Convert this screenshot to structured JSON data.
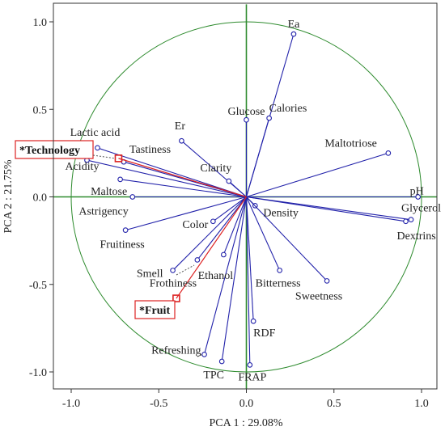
{
  "chart_data": {
    "type": "scatter",
    "title": "",
    "xlabel": "PCA 1 : 29.08%",
    "ylabel": "PCA 2 : 21.75%",
    "xlim": [
      -1.1,
      1.1
    ],
    "ylim": [
      -1.1,
      1.1
    ],
    "xticks": [
      -1.0,
      -0.5,
      0.0,
      0.5,
      1.0
    ],
    "yticks": [
      -1.0,
      -0.5,
      0.0,
      0.5,
      1.0
    ],
    "xtick_labels": [
      "-1.0",
      "-0.5",
      "0.0",
      "0.5",
      "1.0"
    ],
    "ytick_labels": [
      "-1.0",
      "-0.5",
      "0.0",
      "0.5",
      "1.0"
    ],
    "grid": false,
    "unit_circle": true,
    "colors": {
      "vector": "#2222aa",
      "circle": "#2e8b2e",
      "axis_line": "#2e8b2e",
      "supplementary": "#dd2222",
      "point_fill": "#ffffff"
    },
    "variables": [
      {
        "label": "Ea",
        "x": 0.27,
        "y": 0.93
      },
      {
        "label": "Calories",
        "x": 0.13,
        "y": 0.45
      },
      {
        "label": "Glucose",
        "x": 0.0,
        "y": 0.44
      },
      {
        "label": "Er",
        "x": -0.37,
        "y": 0.32
      },
      {
        "label": "Clarity",
        "x": -0.1,
        "y": 0.09
      },
      {
        "label": "Maltotriose",
        "x": 0.81,
        "y": 0.25
      },
      {
        "label": "Lactic acid",
        "x": -0.85,
        "y": 0.28
      },
      {
        "label": "Tastiness",
        "x": -0.7,
        "y": 0.2
      },
      {
        "label": "Acidity",
        "x": -0.91,
        "y": 0.21
      },
      {
        "label": "Maltose",
        "x": -0.72,
        "y": 0.1
      },
      {
        "label": "Astrigency",
        "x": -0.65,
        "y": 0.0
      },
      {
        "label": "pH",
        "x": 0.98,
        "y": 0.0
      },
      {
        "label": "Glycerol",
        "x": 0.94,
        "y": -0.13
      },
      {
        "label": "Dextrins",
        "x": 0.91,
        "y": -0.14
      },
      {
        "label": "Density",
        "x": 0.05,
        "y": -0.05
      },
      {
        "label": "Color",
        "x": -0.19,
        "y": -0.14
      },
      {
        "label": "Fruitiness",
        "x": -0.69,
        "y": -0.19
      },
      {
        "label": "Smell",
        "x": -0.42,
        "y": -0.42
      },
      {
        "label": "Frothiness",
        "x": -0.28,
        "y": -0.36
      },
      {
        "label": "Ethanol",
        "x": -0.13,
        "y": -0.33
      },
      {
        "label": "Bitterness",
        "x": 0.19,
        "y": -0.42
      },
      {
        "label": "Sweetness",
        "x": 0.46,
        "y": -0.48
      },
      {
        "label": "RDF",
        "x": 0.04,
        "y": -0.71
      },
      {
        "label": "Refreshing",
        "x": -0.24,
        "y": -0.9
      },
      {
        "label": "TPC",
        "x": -0.14,
        "y": -0.94
      },
      {
        "label": "FRAP",
        "x": 0.02,
        "y": -0.96
      }
    ],
    "supplementary": [
      {
        "label": "*Technology",
        "x": -0.73,
        "y": 0.22
      },
      {
        "label": "*Fruit",
        "x": -0.4,
        "y": -0.58
      }
    ]
  }
}
